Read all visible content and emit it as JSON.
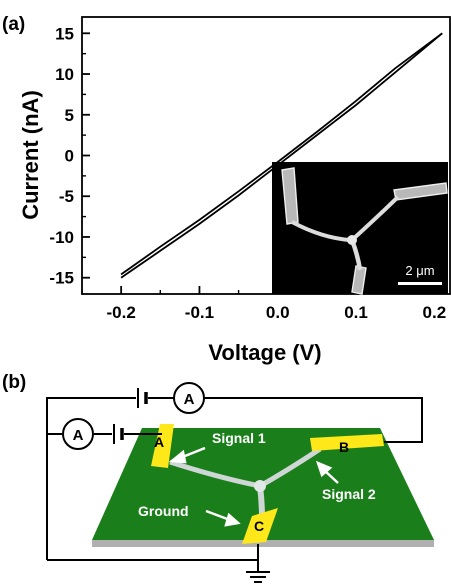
{
  "panel_a": {
    "label": "(a)"
  },
  "panel_b": {
    "label": "(b)",
    "ammeter_symbol": "A",
    "electrodes": {
      "a": "A",
      "b": "B",
      "c": "C"
    },
    "annotations": {
      "signal1": "Signal 1",
      "signal2": "Signal 2",
      "ground": "Ground"
    },
    "colors": {
      "substrate": "#1a7f1a",
      "electrode": "#ffe81a",
      "nanowire": "#cfd6d6"
    }
  },
  "inset": {
    "scale_bar_label": "2 μm"
  },
  "chart_data": {
    "type": "line",
    "xlabel": "Voltage (V)",
    "ylabel": "Current (nA)",
    "xlim": [
      -0.25,
      0.22
    ],
    "ylim": [
      -17,
      17
    ],
    "x_ticks": [
      -0.2,
      -0.1,
      0.0,
      0.1,
      0.2
    ],
    "x_tick_labels": [
      "-0.2",
      "-0.1",
      "0.0",
      "0.1",
      "0.2"
    ],
    "y_ticks": [
      -15,
      -10,
      -5,
      0,
      5,
      10,
      15
    ],
    "y_tick_labels": [
      "-15",
      "-10",
      "-5",
      "0",
      "5",
      "10",
      "15"
    ],
    "grid": false,
    "series": [
      {
        "x": [
          -0.2,
          -0.15,
          -0.1,
          -0.05,
          0.0,
          0.05,
          0.1,
          0.15,
          0.21
        ],
        "y": [
          -15.0,
          -11.7,
          -8.4,
          -4.9,
          -1.2,
          2.5,
          6.2,
          10.2,
          15.0
        ]
      },
      {
        "x": [
          -0.2,
          -0.15,
          -0.1,
          -0.05,
          0.0,
          0.05,
          0.1,
          0.15,
          0.21
        ],
        "y": [
          -14.6,
          -11.2,
          -7.9,
          -4.4,
          -0.8,
          2.9,
          6.7,
          10.7,
          15.0
        ]
      }
    ]
  }
}
